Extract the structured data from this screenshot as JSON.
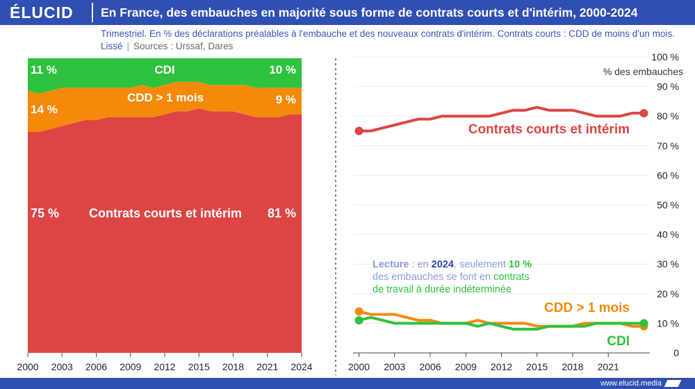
{
  "header": {
    "logo": "ÉLUCID",
    "title": "En France, des embauches en majorité sous forme de contrats courts et d'intérim, 2000-2024",
    "subtitle": "Trimestriel. En % des déclarations préalables à l'embauche et des nouveaux contrats d'intérim. Contrats courts : CDD de moins d'un mois. Lissé",
    "sources": "Sources : Urssaf, Dares",
    "separator": "|"
  },
  "footer": {
    "url": "www.elucid.media"
  },
  "colors": {
    "red": "#dd4444",
    "orange": "#f5890a",
    "green": "#2ec23e",
    "blue": "#2f4fb3",
    "lecture_label": "#8b9ae0",
    "lecture_year": "#3346b4"
  },
  "chart_data": [
    {
      "type": "area",
      "stacked": true,
      "percent_stacked": true,
      "x": [
        2000,
        2001,
        2002,
        2003,
        2004,
        2005,
        2006,
        2007,
        2008,
        2009,
        2010,
        2011,
        2012,
        2013,
        2014,
        2015,
        2016,
        2017,
        2018,
        2019,
        2020,
        2021,
        2022,
        2023,
        2024
      ],
      "xlim": [
        2000,
        2024
      ],
      "x_ticks": [
        "2000",
        "2003",
        "2006",
        "2009",
        "2012",
        "2015",
        "2018",
        "2021",
        "2024"
      ],
      "series": [
        {
          "name": "Contrats courts et intérim",
          "values": [
            75,
            75,
            76,
            77,
            78,
            79,
            79,
            80,
            80,
            80,
            80,
            80,
            81,
            82,
            82,
            83,
            82,
            82,
            82,
            81,
            80,
            80,
            80,
            81,
            81
          ]
        },
        {
          "name": "CDD > 1 mois",
          "values": [
            14,
            13,
            13,
            13,
            12,
            11,
            11,
            10,
            10,
            10,
            11,
            10,
            10,
            10,
            10,
            9,
            9,
            9,
            9,
            10,
            10,
            10,
            10,
            9,
            9
          ]
        },
        {
          "name": "CDI",
          "values": [
            11,
            12,
            11,
            10,
            10,
            10,
            10,
            10,
            10,
            10,
            9,
            10,
            9,
            8,
            8,
            8,
            9,
            9,
            9,
            9,
            10,
            10,
            10,
            10,
            10
          ]
        }
      ],
      "labels": {
        "red_start": "75 %",
        "red_end": "81 %",
        "red_name": "Contrats courts et intérim",
        "orange_start": "14 %",
        "orange_end": "9 %",
        "orange_name": "CDD > 1 mois",
        "green_start": "11 %",
        "green_end": "10 %",
        "green_name": "CDI"
      }
    },
    {
      "type": "line",
      "x": [
        2000,
        2001,
        2002,
        2003,
        2004,
        2005,
        2006,
        2007,
        2008,
        2009,
        2010,
        2011,
        2012,
        2013,
        2014,
        2015,
        2016,
        2017,
        2018,
        2019,
        2020,
        2021,
        2022,
        2023,
        2024
      ],
      "xlim": [
        1999.5,
        2024.5
      ],
      "ylim": [
        0,
        100
      ],
      "x_ticks": [
        "2000",
        "2003",
        "2006",
        "2009",
        "2012",
        "2015",
        "2018",
        "2021"
      ],
      "y_ticks": [
        "0",
        "10 %",
        "20 %",
        "30 %",
        "40 %",
        "50 %",
        "60 %",
        "70 %",
        "80 %",
        "90 %",
        "100 %"
      ],
      "ylabel": "% des embauches",
      "series": [
        {
          "name": "Contrats courts et intérim",
          "values": [
            75,
            75,
            76,
            77,
            78,
            79,
            79,
            80,
            80,
            80,
            80,
            80,
            81,
            82,
            82,
            83,
            82,
            82,
            82,
            81,
            80,
            80,
            80,
            81,
            81
          ]
        },
        {
          "name": "CDD > 1 mois",
          "values": [
            14,
            13,
            13,
            13,
            12,
            11,
            11,
            10,
            10,
            10,
            11,
            10,
            10,
            10,
            10,
            9,
            9,
            9,
            9,
            10,
            10,
            10,
            10,
            9,
            9
          ]
        },
        {
          "name": "CDI",
          "values": [
            11,
            12,
            11,
            10,
            10,
            10,
            10,
            10,
            10,
            10,
            9,
            10,
            9,
            8,
            8,
            8,
            9,
            9,
            9,
            9,
            10,
            10,
            10,
            10,
            10
          ]
        }
      ],
      "series_labels": [
        "Contrats courts et intérim",
        "CDD > 1 mois",
        "CDI"
      ],
      "annotation": {
        "p1": "Lecture",
        "p2": " : en ",
        "p3": "2024",
        "p4": ", seulement ",
        "p5": "10 %",
        "p6": "des embauches se font en ",
        "p7": "contrats",
        "p8": "de travail à durée indéterminée"
      }
    }
  ]
}
